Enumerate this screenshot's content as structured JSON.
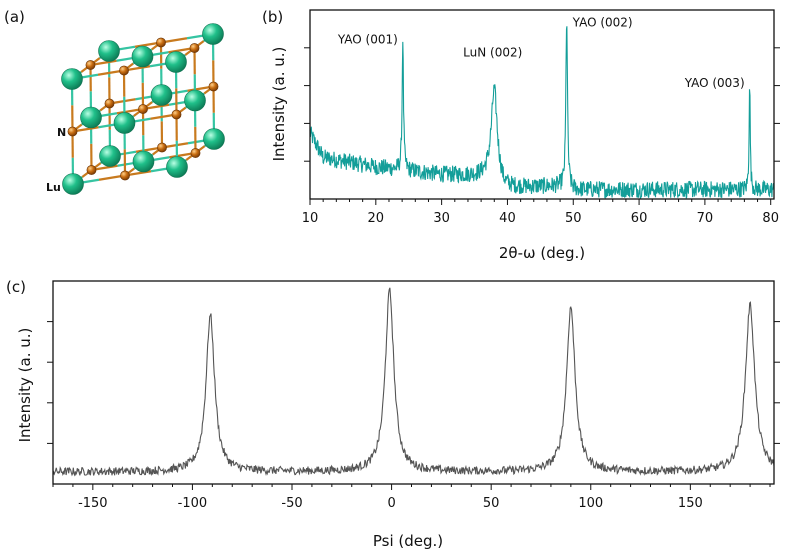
{
  "panels": {
    "a": {
      "label": "(a)",
      "atom_labels": [
        "N",
        "Lu"
      ],
      "colors": {
        "lu": "#20c08a",
        "n": "#c96d10",
        "bond_a": "#c87a1e",
        "bond_b": "#35c4a2"
      }
    }
  },
  "chart_data": [
    {
      "panel": "(b)",
      "type": "line",
      "xlabel": "2θ-ω (deg.)",
      "ylabel": "Intensity (a. u.)",
      "xlim": [
        10,
        80.5
      ],
      "xticks": [
        10,
        20,
        30,
        40,
        50,
        60,
        70,
        80
      ],
      "ylim": [
        0,
        1
      ],
      "y_ticks_unlabeled": 4,
      "color": "#139e99",
      "baseline_segments": [
        [
          10,
          0.35
        ],
        [
          12,
          0.22
        ],
        [
          20,
          0.17
        ],
        [
          30,
          0.13
        ],
        [
          38,
          0.12
        ],
        [
          39.5,
          0.06
        ],
        [
          49,
          0.07
        ],
        [
          50,
          0.05
        ],
        [
          80.5,
          0.05
        ]
      ],
      "noise": 0.045,
      "peaks": [
        {
          "label": "YAO (001)",
          "x": 24.1,
          "height": 0.86,
          "width": 0.12
        },
        {
          "label": "LuN (002)",
          "x": 38.0,
          "height": 0.58,
          "width": 0.55
        },
        {
          "label": "YAO (002)",
          "x": 49.0,
          "height": 0.97,
          "width": 0.14
        },
        {
          "label": "YAO (003)",
          "x": 76.8,
          "height": 0.62,
          "width": 0.1
        }
      ]
    },
    {
      "panel": "(c)",
      "type": "line",
      "xlabel": "Psi (deg.)",
      "ylabel": "Intensity (a. u.)",
      "xlim": [
        -170,
        192
      ],
      "xticks": [
        -150,
        -100,
        -50,
        0,
        50,
        100,
        150
      ],
      "ylim": [
        0,
        1
      ],
      "y_ticks_unlabeled": 4,
      "color": "#555555",
      "baseline": 0.06,
      "noise": 0.02,
      "peaks": [
        {
          "x": -91,
          "height": 0.83,
          "width": 2.6
        },
        {
          "x": -1,
          "height": 0.95,
          "width": 2.6
        },
        {
          "x": 90,
          "height": 0.87,
          "width": 2.6
        },
        {
          "x": 180,
          "height": 0.88,
          "width": 2.8
        }
      ]
    }
  ]
}
